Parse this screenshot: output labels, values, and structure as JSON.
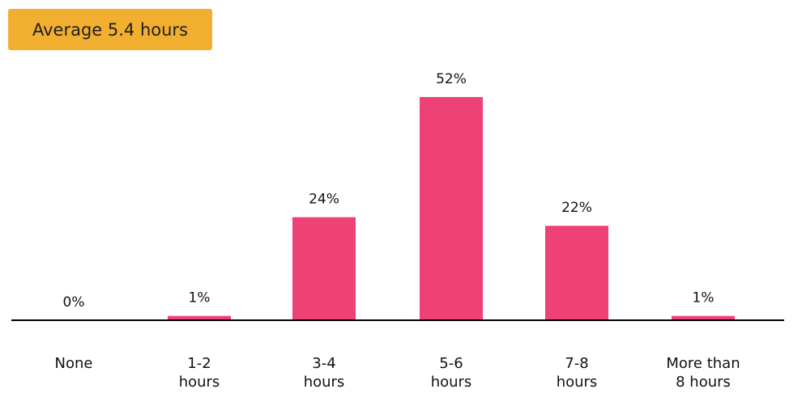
{
  "badge": {
    "text": "Average 5.4 hours",
    "color": "#f2af2f"
  },
  "chart_data": {
    "type": "bar",
    "title": "",
    "xlabel": "",
    "ylabel": "",
    "categories": [
      "None",
      "1-2\nhours",
      "3-4\nhours",
      "5-6\nhours",
      "7-8\nhours",
      "More  than\n8 hours"
    ],
    "values": [
      0,
      1,
      24,
      52,
      22,
      1
    ],
    "data_labels": [
      "0%",
      "1%",
      "24%",
      "52%",
      "22%",
      "1%"
    ],
    "unit": "%",
    "ylim": [
      0,
      52
    ],
    "grid": false,
    "legend": "none",
    "bar_color": "#ee4277",
    "axis_color": "#000000"
  }
}
